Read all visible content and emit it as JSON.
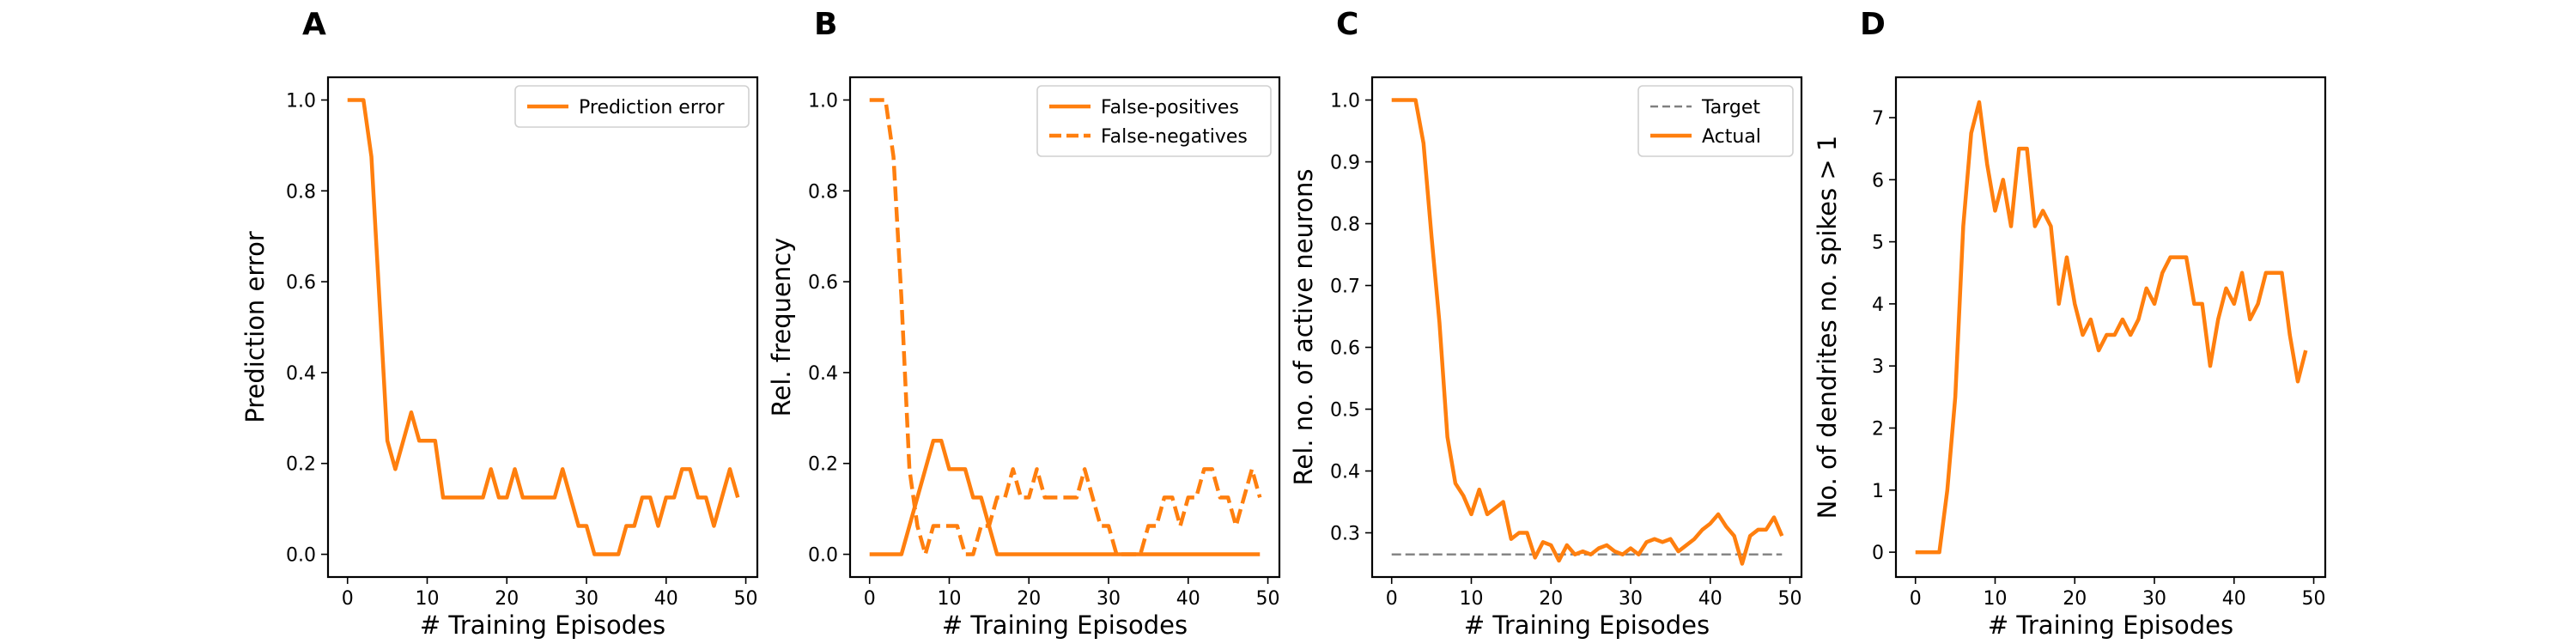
{
  "figure": {
    "colors": {
      "series": "#ff7f0e",
      "target": "#808080",
      "axes": "#000000"
    }
  },
  "chart_data": [
    {
      "type": "line",
      "panel": "A",
      "xlabel": "# Training Episodes",
      "ylabel": "Prediction error",
      "xlim": [
        -2.45,
        51.45
      ],
      "ylim": [
        -0.05,
        1.05
      ],
      "xticks": [
        0,
        10,
        20,
        30,
        40,
        50
      ],
      "xtick_labels": [
        "0",
        "10",
        "20",
        "30",
        "40",
        "50"
      ],
      "yticks": [
        0.0,
        0.2,
        0.4,
        0.6,
        0.8,
        1.0
      ],
      "ytick_labels": [
        "0.0",
        "0.2",
        "0.4",
        "0.6",
        "0.8",
        "1.0"
      ],
      "legend_position": "top-right",
      "x": [
        0,
        1,
        2,
        3,
        4,
        5,
        6,
        7,
        8,
        9,
        10,
        11,
        12,
        13,
        14,
        15,
        16,
        17,
        18,
        19,
        20,
        21,
        22,
        23,
        24,
        25,
        26,
        27,
        28,
        29,
        30,
        31,
        32,
        33,
        34,
        35,
        36,
        37,
        38,
        39,
        40,
        41,
        42,
        43,
        44,
        45,
        46,
        47,
        48,
        49
      ],
      "series": [
        {
          "name": "Prediction error",
          "style": "solid",
          "color": "#ff7f0e",
          "values": [
            1.0,
            1.0,
            1.0,
            0.875,
            0.5625,
            0.25,
            0.1875,
            0.25,
            0.3125,
            0.25,
            0.25,
            0.25,
            0.125,
            0.125,
            0.125,
            0.125,
            0.125,
            0.125,
            0.1875,
            0.125,
            0.125,
            0.1875,
            0.125,
            0.125,
            0.125,
            0.125,
            0.125,
            0.1875,
            0.125,
            0.0625,
            0.0625,
            0.0,
            0.0,
            0.0,
            0.0,
            0.0625,
            0.0625,
            0.125,
            0.125,
            0.0625,
            0.125,
            0.125,
            0.1875,
            0.1875,
            0.125,
            0.125,
            0.0625,
            0.125,
            0.1875,
            0.125
          ]
        }
      ]
    },
    {
      "type": "line",
      "panel": "B",
      "xlabel": "# Training Episodes",
      "ylabel": "Rel. frequency",
      "xlim": [
        -2.45,
        51.45
      ],
      "ylim": [
        -0.05,
        1.05
      ],
      "xticks": [
        0,
        10,
        20,
        30,
        40,
        50
      ],
      "xtick_labels": [
        "0",
        "10",
        "20",
        "30",
        "40",
        "50"
      ],
      "yticks": [
        0.0,
        0.2,
        0.4,
        0.6,
        0.8,
        1.0
      ],
      "ytick_labels": [
        "0.0",
        "0.2",
        "0.4",
        "0.6",
        "0.8",
        "1.0"
      ],
      "legend_position": "top-right",
      "x": [
        0,
        1,
        2,
        3,
        4,
        5,
        6,
        7,
        8,
        9,
        10,
        11,
        12,
        13,
        14,
        15,
        16,
        17,
        18,
        19,
        20,
        21,
        22,
        23,
        24,
        25,
        26,
        27,
        28,
        29,
        30,
        31,
        32,
        33,
        34,
        35,
        36,
        37,
        38,
        39,
        40,
        41,
        42,
        43,
        44,
        45,
        46,
        47,
        48,
        49
      ],
      "series": [
        {
          "name": "False-positives",
          "style": "solid",
          "color": "#ff7f0e",
          "values": [
            0,
            0,
            0,
            0,
            0,
            0.0625,
            0.125,
            0.1875,
            0.25,
            0.25,
            0.1875,
            0.1875,
            0.1875,
            0.125,
            0.125,
            0.0625,
            0,
            0,
            0,
            0,
            0,
            0,
            0,
            0,
            0,
            0,
            0,
            0,
            0,
            0,
            0,
            0,
            0,
            0,
            0,
            0,
            0,
            0,
            0,
            0,
            0,
            0,
            0,
            0,
            0,
            0,
            0,
            0,
            0,
            0
          ]
        },
        {
          "name": "False-negatives",
          "style": "dashed",
          "color": "#ff7f0e",
          "values": [
            1.0,
            1.0,
            1.0,
            0.875,
            0.5625,
            0.1875,
            0.0625,
            0,
            0.0625,
            0.0625,
            0.0625,
            0.0625,
            0,
            0,
            0.0625,
            0.0625,
            0.125,
            0.125,
            0.1875,
            0.125,
            0.125,
            0.1875,
            0.125,
            0.125,
            0.125,
            0.125,
            0.125,
            0.1875,
            0.125,
            0.0625,
            0.0625,
            0,
            0,
            0,
            0,
            0.0625,
            0.0625,
            0.125,
            0.125,
            0.0625,
            0.125,
            0.125,
            0.1875,
            0.1875,
            0.125,
            0.125,
            0.0625,
            0.125,
            0.1875,
            0.125
          ]
        }
      ]
    },
    {
      "type": "line",
      "panel": "C",
      "xlabel": "# Training Episodes",
      "ylabel": "Rel. no. of active neurons",
      "xlim": [
        -2.45,
        51.45
      ],
      "ylim": [
        0.2285,
        1.0368
      ],
      "xticks": [
        0,
        10,
        20,
        30,
        40,
        50
      ],
      "xtick_labels": [
        "0",
        "10",
        "20",
        "30",
        "40",
        "50"
      ],
      "yticks": [
        0.3,
        0.4,
        0.5,
        0.6,
        0.7,
        0.8,
        0.9,
        1.0
      ],
      "ytick_labels": [
        "0.3",
        "0.4",
        "0.5",
        "0.6",
        "0.7",
        "0.8",
        "0.9",
        "1.0"
      ],
      "legend_position": "top-right",
      "x": [
        0,
        1,
        2,
        3,
        4,
        5,
        6,
        7,
        8,
        9,
        10,
        11,
        12,
        13,
        14,
        15,
        16,
        17,
        18,
        19,
        20,
        21,
        22,
        23,
        24,
        25,
        26,
        27,
        28,
        29,
        30,
        31,
        32,
        33,
        34,
        35,
        36,
        37,
        38,
        39,
        40,
        41,
        42,
        43,
        44,
        45,
        46,
        47,
        48,
        49
      ],
      "series": [
        {
          "name": "Target",
          "style": "dashed",
          "color": "#808080",
          "values": [
            0.265,
            0.265,
            0.265,
            0.265,
            0.265,
            0.265,
            0.265,
            0.265,
            0.265,
            0.265,
            0.265,
            0.265,
            0.265,
            0.265,
            0.265,
            0.265,
            0.265,
            0.265,
            0.265,
            0.265,
            0.265,
            0.265,
            0.265,
            0.265,
            0.265,
            0.265,
            0.265,
            0.265,
            0.265,
            0.265,
            0.265,
            0.265,
            0.265,
            0.265,
            0.265,
            0.265,
            0.265,
            0.265,
            0.265,
            0.265,
            0.265,
            0.265,
            0.265,
            0.265,
            0.265,
            0.265,
            0.265,
            0.265,
            0.265,
            0.265
          ]
        },
        {
          "name": "Actual",
          "style": "solid",
          "color": "#ff7f0e",
          "values": [
            1.0,
            1.0,
            1.0,
            1.0,
            0.93,
            0.78,
            0.64,
            0.455,
            0.38,
            0.36,
            0.33,
            0.37,
            0.33,
            0.34,
            0.35,
            0.29,
            0.3,
            0.3,
            0.26,
            0.285,
            0.28,
            0.255,
            0.28,
            0.265,
            0.27,
            0.265,
            0.275,
            0.28,
            0.27,
            0.265,
            0.275,
            0.265,
            0.285,
            0.29,
            0.285,
            0.29,
            0.27,
            0.28,
            0.29,
            0.305,
            0.315,
            0.33,
            0.31,
            0.295,
            0.25,
            0.295,
            0.305,
            0.305,
            0.325,
            0.295
          ]
        }
      ]
    },
    {
      "type": "line",
      "panel": "D",
      "xlabel": "# Training Episodes",
      "ylabel": "No. of dendrites no. spikes > 1",
      "xlim": [
        -2.45,
        51.45
      ],
      "ylim": [
        -0.4,
        7.65
      ],
      "xticks": [
        0,
        10,
        20,
        30,
        40,
        50
      ],
      "xtick_labels": [
        "0",
        "10",
        "20",
        "30",
        "40",
        "50"
      ],
      "yticks": [
        0,
        1,
        2,
        3,
        4,
        5,
        6,
        7
      ],
      "ytick_labels": [
        "0",
        "1",
        "2",
        "3",
        "4",
        "5",
        "6",
        "7"
      ],
      "x": [
        0,
        1,
        2,
        3,
        4,
        5,
        6,
        7,
        8,
        9,
        10,
        11,
        12,
        13,
        14,
        15,
        16,
        17,
        18,
        19,
        20,
        21,
        22,
        23,
        24,
        25,
        26,
        27,
        28,
        29,
        30,
        31,
        32,
        33,
        34,
        35,
        36,
        37,
        38,
        39,
        40,
        41,
        42,
        43,
        44,
        45,
        46,
        47,
        48,
        49
      ],
      "series": [
        {
          "style": "solid",
          "color": "#ff7f0e",
          "values": [
            0,
            0,
            0,
            0,
            1.0,
            2.5,
            5.25,
            6.75,
            7.25,
            6.25,
            5.5,
            6.0,
            5.25,
            6.5,
            6.5,
            5.25,
            5.5,
            5.25,
            4.0,
            4.75,
            4.0,
            3.5,
            3.75,
            3.25,
            3.5,
            3.5,
            3.75,
            3.5,
            3.75,
            4.25,
            4.0,
            4.5,
            4.75,
            4.75,
            4.75,
            4.0,
            4.0,
            3.0,
            3.75,
            4.25,
            4.0,
            4.5,
            3.75,
            4.0,
            4.5,
            4.5,
            4.5,
            3.5,
            2.75,
            3.25
          ]
        }
      ]
    }
  ]
}
